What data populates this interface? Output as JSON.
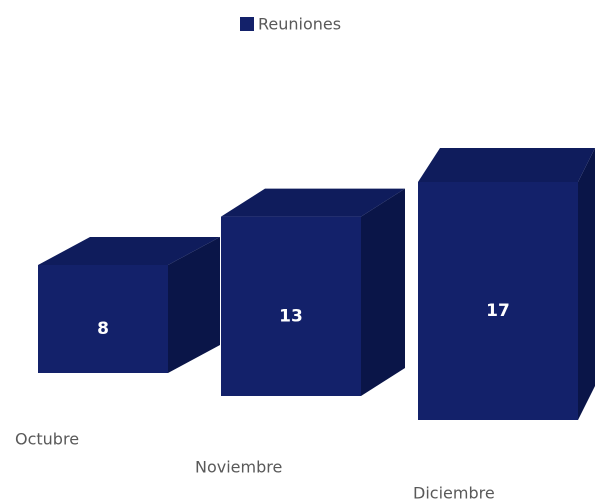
{
  "chart_data": {
    "type": "bar3d",
    "categories": [
      "Octubre",
      "Noviembre",
      "Diciembre"
    ],
    "series": [
      {
        "name": "Reuniones",
        "color": "#13216a",
        "values": [
          8,
          13,
          17
        ]
      }
    ],
    "legend": "top"
  }
}
